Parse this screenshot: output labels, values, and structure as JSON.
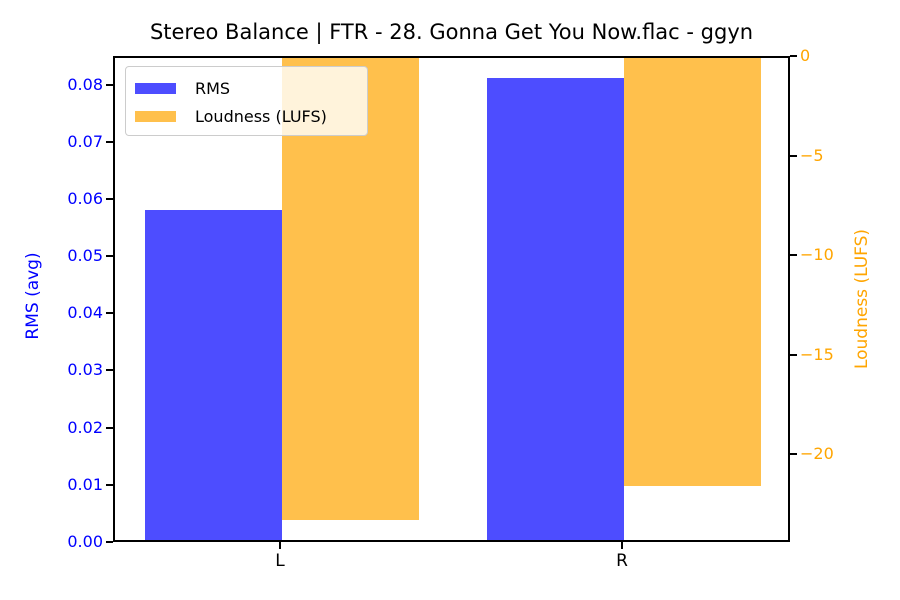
{
  "title": "Stereo Balance | FTR - 28. Gonna Get You Now.flac - ggyn",
  "chart_data": {
    "type": "bar",
    "title": "Stereo Balance | FTR - 28. Gonna Get You Now.flac - ggyn",
    "categories": [
      "L",
      "R"
    ],
    "series": [
      {
        "name": "RMS",
        "axis": "left",
        "color": "#4d4dff",
        "values": [
          0.0577,
          0.0808
        ]
      },
      {
        "name": "Loudness (LUFS)",
        "axis": "right",
        "color": "#ffc04c",
        "values": [
          -23.2,
          -21.5
        ]
      }
    ],
    "left_axis": {
      "label": "RMS (avg)",
      "color": "#0000ff",
      "range": [
        0,
        0.085
      ],
      "ticks": [
        {
          "value": 0.0,
          "label": "0.00"
        },
        {
          "value": 0.01,
          "label": "0.01"
        },
        {
          "value": 0.02,
          "label": "0.02"
        },
        {
          "value": 0.03,
          "label": "0.03"
        },
        {
          "value": 0.04,
          "label": "0.04"
        },
        {
          "value": 0.05,
          "label": "0.05"
        },
        {
          "value": 0.06,
          "label": "0.06"
        },
        {
          "value": 0.07,
          "label": "0.07"
        },
        {
          "value": 0.08,
          "label": "0.08"
        }
      ]
    },
    "right_axis": {
      "label": "Loudness (LUFS)",
      "color": "#ffa500",
      "range": [
        -24.4,
        0
      ],
      "ticks": [
        {
          "value": 0,
          "label": "0"
        },
        {
          "value": -5,
          "label": "−5"
        },
        {
          "value": -10,
          "label": "−10"
        },
        {
          "value": -15,
          "label": "−15"
        },
        {
          "value": -20,
          "label": "−20"
        }
      ]
    },
    "legend": {
      "position": "upper left",
      "entries": [
        "RMS",
        "Loudness (LUFS)"
      ]
    },
    "grid": false
  }
}
